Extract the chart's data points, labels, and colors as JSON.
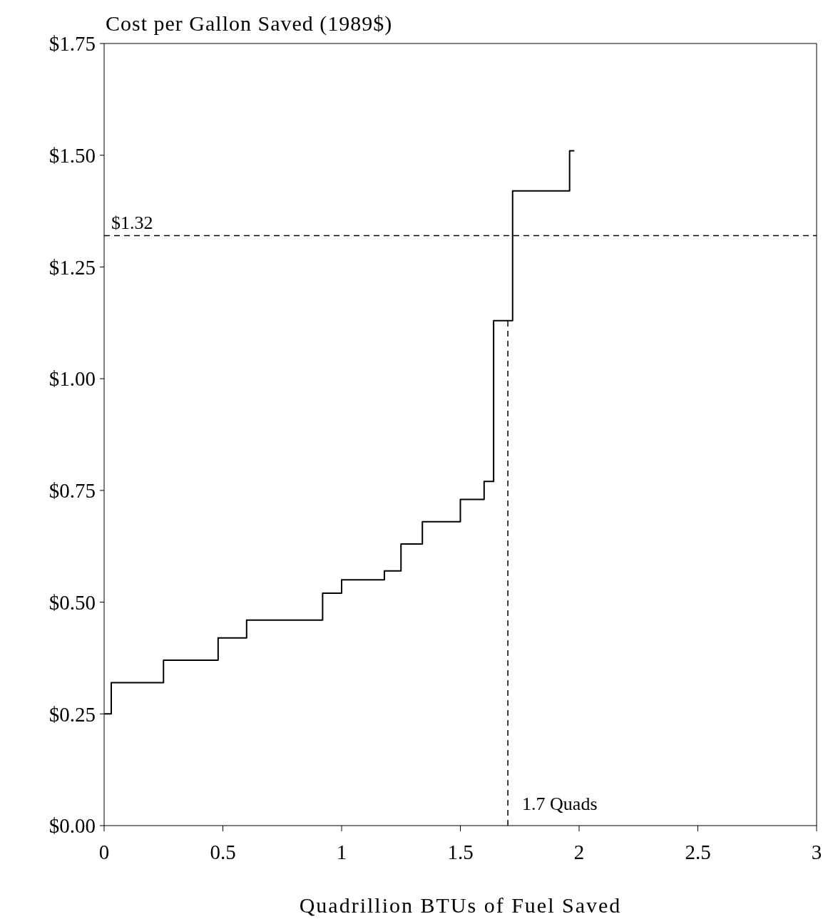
{
  "chart_data": {
    "type": "step",
    "title": "Cost per Gallon Saved (1989$)",
    "xlabel": "Quadrillion BTUs of Fuel Saved",
    "x": [
      0,
      0.03,
      0.25,
      0.48,
      0.6,
      0.92,
      1,
      1.18,
      1.25,
      1.34,
      1.5,
      1.6,
      1.64,
      1.72,
      1.96,
      1.98
    ],
    "series": [
      {
        "color": "#000000",
        "values": [
          0.25,
          0.32,
          0.37,
          0.42,
          0.46,
          0.52,
          0.55,
          0.57,
          0.63,
          0.68,
          0.73,
          0.77,
          1.13,
          1.42,
          1.51,
          1.51
        ]
      }
    ],
    "xlim": [
      0,
      3
    ],
    "xticks": [
      0,
      0.5,
      1,
      1.5,
      2,
      2.5,
      3
    ],
    "ylim": [
      0,
      1.75
    ],
    "yticks": [
      {
        "value": 0,
        "label": "$0.00"
      },
      {
        "value": 0.25,
        "label": "$0.25"
      },
      {
        "value": 0.5,
        "label": "$0.50"
      },
      {
        "value": 0.75,
        "label": "$0.75"
      },
      {
        "value": 1,
        "label": "$1.00"
      },
      {
        "value": 1.25,
        "label": "$1.25"
      },
      {
        "value": 1.5,
        "label": "$1.50"
      },
      {
        "value": 1.75,
        "label": "$1.75"
      }
    ],
    "ref_lines": [
      {
        "axis": "y",
        "value": 1.32,
        "label": "$1.32",
        "color": "#000000",
        "line_style": "dashed"
      },
      {
        "axis": "x",
        "value": 1.7,
        "label": "1.7 Quads",
        "color": "#000000",
        "line_style": "dashed"
      }
    ],
    "grid": false,
    "legend": false,
    "marker": "none",
    "line_style": "solid"
  }
}
